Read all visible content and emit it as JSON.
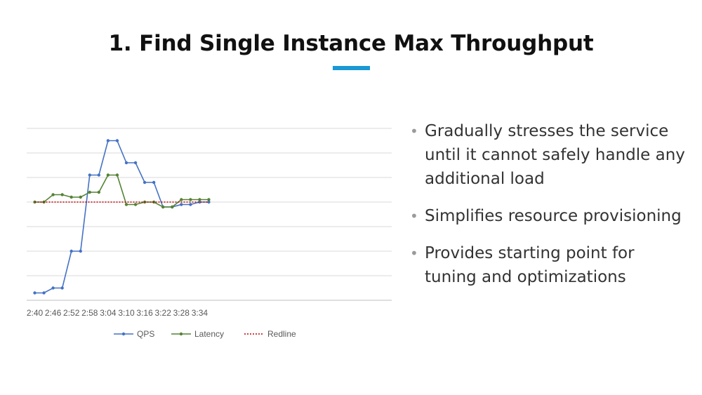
{
  "slide": {
    "title": "1. Find Single Instance Max Throughput",
    "accent_color": "#1a98d5"
  },
  "bullets": [
    {
      "text": "Gradually stresses the service until it cannot safely handle any additional load"
    },
    {
      "text": "Simplifies resource provisioning"
    },
    {
      "text": "Provides starting point for tuning and optimizations"
    }
  ],
  "chart_data": {
    "type": "line",
    "title": "",
    "xlabel": "",
    "ylabel": "",
    "grid": true,
    "legend_position": "bottom",
    "x": [
      "2:40",
      "2:43",
      "2:46",
      "2:49",
      "2:52",
      "2:55",
      "2:58",
      "3:01",
      "3:04",
      "3:07",
      "3:10",
      "3:13",
      "3:16",
      "3:19",
      "3:22",
      "3:25",
      "3:28",
      "3:31",
      "3:34",
      "3:37"
    ],
    "tick_labels": [
      "2:40",
      "2:46",
      "2:52",
      "2:58",
      "3:04",
      "3:10",
      "3:16",
      "3:22",
      "3:28",
      "3:34"
    ],
    "ylim": [
      0,
      7
    ],
    "series": [
      {
        "name": "QPS",
        "color": "#4472c4",
        "style": "solid-marker",
        "values": [
          0.3,
          0.3,
          0.5,
          0.5,
          2.0,
          2.0,
          5.1,
          5.1,
          6.5,
          6.5,
          5.6,
          5.6,
          4.8,
          4.8,
          3.8,
          3.8,
          3.9,
          3.9,
          4.0,
          4.0
        ]
      },
      {
        "name": "Latency",
        "color": "#548235",
        "style": "solid-marker",
        "values": [
          4.0,
          4.0,
          4.3,
          4.3,
          4.2,
          4.2,
          4.4,
          4.4,
          5.1,
          5.1,
          3.9,
          3.9,
          4.0,
          4.0,
          3.8,
          3.8,
          4.1,
          4.1,
          4.1,
          4.1
        ]
      },
      {
        "name": "Redline",
        "color": "#c00000",
        "style": "dotted",
        "values": [
          4.0,
          4.0,
          4.0,
          4.0,
          4.0,
          4.0,
          4.0,
          4.0,
          4.0,
          4.0,
          4.0,
          4.0,
          4.0,
          4.0,
          4.0,
          4.0,
          4.0,
          4.0,
          4.0,
          4.0
        ]
      }
    ]
  }
}
